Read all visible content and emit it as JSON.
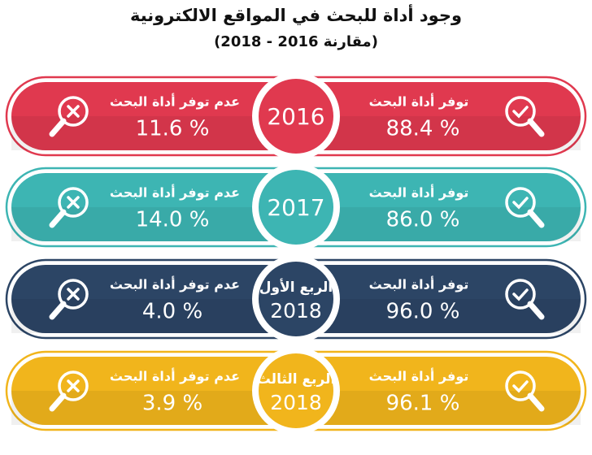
{
  "header": {
    "title": "وجود أداة للبحث في المواقع الالكترونية",
    "subtitle": "(مقارنة 2016 - 2018)"
  },
  "rows": [
    {
      "year": "2016",
      "color": "#e0394f",
      "available": {
        "label": "توفر أداة البحث",
        "value": "88.4 %"
      },
      "unavailable": {
        "label": "عدم توفر أداة البحث",
        "value": "11.6 %"
      }
    },
    {
      "year": "2017",
      "color": "#3db5b3",
      "available": {
        "label": "توفر أداة البحث",
        "value": "86.0 %"
      },
      "unavailable": {
        "label": "عدم توفر أداة البحث",
        "value": "14.0 %"
      }
    },
    {
      "period": "الربع الأول",
      "year": "2018",
      "color": "#2c4565",
      "available": {
        "label": "توفر أداة البحث",
        "value": "96.0 %"
      },
      "unavailable": {
        "label": "عدم توفر أداة البحث",
        "value": "4.0 %"
      }
    },
    {
      "period": "الربع الثالث",
      "year": "2018",
      "color": "#f1b51c",
      "available": {
        "label": "توفر أداة البحث",
        "value": "96.1 %"
      },
      "unavailable": {
        "label": "عدم توفر أداة البحث",
        "value": "3.9 %"
      }
    }
  ]
}
